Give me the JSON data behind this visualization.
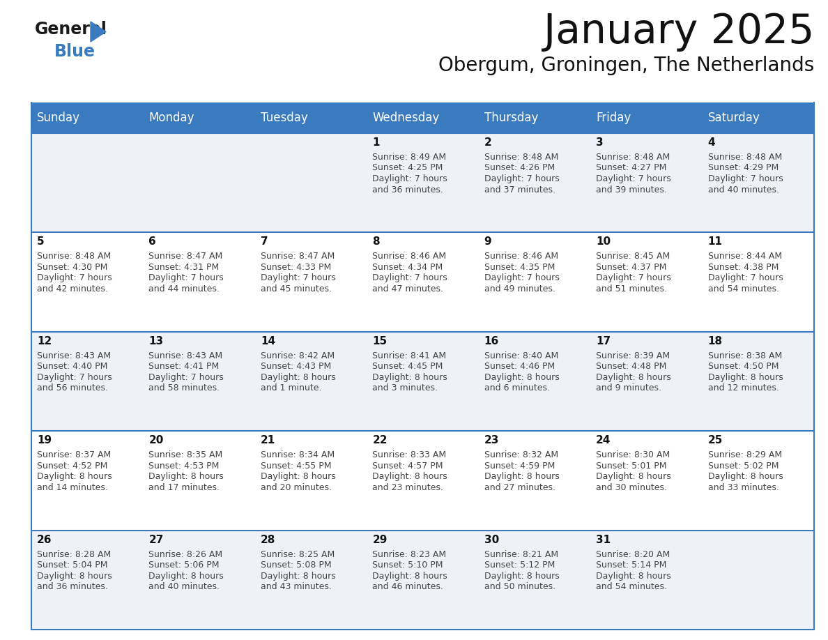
{
  "title": "January 2025",
  "subtitle": "Obergum, Groningen, The Netherlands",
  "days_of_week": [
    "Sunday",
    "Monday",
    "Tuesday",
    "Wednesday",
    "Thursday",
    "Friday",
    "Saturday"
  ],
  "header_bg": "#3a7abf",
  "header_text": "#ffffff",
  "row_bg_light": "#eef2f7",
  "row_bg_white": "#ffffff",
  "border_color": "#3a7abf",
  "cell_text_color": "#444444",
  "calendar_data": [
    {
      "day": 1,
      "col": 3,
      "row": 0,
      "sunrise": "8:49 AM",
      "sunset": "4:25 PM",
      "daylight": "7 hours",
      "daylight2": "and 36 minutes."
    },
    {
      "day": 2,
      "col": 4,
      "row": 0,
      "sunrise": "8:48 AM",
      "sunset": "4:26 PM",
      "daylight": "7 hours",
      "daylight2": "and 37 minutes."
    },
    {
      "day": 3,
      "col": 5,
      "row": 0,
      "sunrise": "8:48 AM",
      "sunset": "4:27 PM",
      "daylight": "7 hours",
      "daylight2": "and 39 minutes."
    },
    {
      "day": 4,
      "col": 6,
      "row": 0,
      "sunrise": "8:48 AM",
      "sunset": "4:29 PM",
      "daylight": "7 hours",
      "daylight2": "and 40 minutes."
    },
    {
      "day": 5,
      "col": 0,
      "row": 1,
      "sunrise": "8:48 AM",
      "sunset": "4:30 PM",
      "daylight": "7 hours",
      "daylight2": "and 42 minutes."
    },
    {
      "day": 6,
      "col": 1,
      "row": 1,
      "sunrise": "8:47 AM",
      "sunset": "4:31 PM",
      "daylight": "7 hours",
      "daylight2": "and 44 minutes."
    },
    {
      "day": 7,
      "col": 2,
      "row": 1,
      "sunrise": "8:47 AM",
      "sunset": "4:33 PM",
      "daylight": "7 hours",
      "daylight2": "and 45 minutes."
    },
    {
      "day": 8,
      "col": 3,
      "row": 1,
      "sunrise": "8:46 AM",
      "sunset": "4:34 PM",
      "daylight": "7 hours",
      "daylight2": "and 47 minutes."
    },
    {
      "day": 9,
      "col": 4,
      "row": 1,
      "sunrise": "8:46 AM",
      "sunset": "4:35 PM",
      "daylight": "7 hours",
      "daylight2": "and 49 minutes."
    },
    {
      "day": 10,
      "col": 5,
      "row": 1,
      "sunrise": "8:45 AM",
      "sunset": "4:37 PM",
      "daylight": "7 hours",
      "daylight2": "and 51 minutes."
    },
    {
      "day": 11,
      "col": 6,
      "row": 1,
      "sunrise": "8:44 AM",
      "sunset": "4:38 PM",
      "daylight": "7 hours",
      "daylight2": "and 54 minutes."
    },
    {
      "day": 12,
      "col": 0,
      "row": 2,
      "sunrise": "8:43 AM",
      "sunset": "4:40 PM",
      "daylight": "7 hours",
      "daylight2": "and 56 minutes."
    },
    {
      "day": 13,
      "col": 1,
      "row": 2,
      "sunrise": "8:43 AM",
      "sunset": "4:41 PM",
      "daylight": "7 hours",
      "daylight2": "and 58 minutes."
    },
    {
      "day": 14,
      "col": 2,
      "row": 2,
      "sunrise": "8:42 AM",
      "sunset": "4:43 PM",
      "daylight": "8 hours",
      "daylight2": "and 1 minute."
    },
    {
      "day": 15,
      "col": 3,
      "row": 2,
      "sunrise": "8:41 AM",
      "sunset": "4:45 PM",
      "daylight": "8 hours",
      "daylight2": "and 3 minutes."
    },
    {
      "day": 16,
      "col": 4,
      "row": 2,
      "sunrise": "8:40 AM",
      "sunset": "4:46 PM",
      "daylight": "8 hours",
      "daylight2": "and 6 minutes."
    },
    {
      "day": 17,
      "col": 5,
      "row": 2,
      "sunrise": "8:39 AM",
      "sunset": "4:48 PM",
      "daylight": "8 hours",
      "daylight2": "and 9 minutes."
    },
    {
      "day": 18,
      "col": 6,
      "row": 2,
      "sunrise": "8:38 AM",
      "sunset": "4:50 PM",
      "daylight": "8 hours",
      "daylight2": "and 12 minutes."
    },
    {
      "day": 19,
      "col": 0,
      "row": 3,
      "sunrise": "8:37 AM",
      "sunset": "4:52 PM",
      "daylight": "8 hours",
      "daylight2": "and 14 minutes."
    },
    {
      "day": 20,
      "col": 1,
      "row": 3,
      "sunrise": "8:35 AM",
      "sunset": "4:53 PM",
      "daylight": "8 hours",
      "daylight2": "and 17 minutes."
    },
    {
      "day": 21,
      "col": 2,
      "row": 3,
      "sunrise": "8:34 AM",
      "sunset": "4:55 PM",
      "daylight": "8 hours",
      "daylight2": "and 20 minutes."
    },
    {
      "day": 22,
      "col": 3,
      "row": 3,
      "sunrise": "8:33 AM",
      "sunset": "4:57 PM",
      "daylight": "8 hours",
      "daylight2": "and 23 minutes."
    },
    {
      "day": 23,
      "col": 4,
      "row": 3,
      "sunrise": "8:32 AM",
      "sunset": "4:59 PM",
      "daylight": "8 hours",
      "daylight2": "and 27 minutes."
    },
    {
      "day": 24,
      "col": 5,
      "row": 3,
      "sunrise": "8:30 AM",
      "sunset": "5:01 PM",
      "daylight": "8 hours",
      "daylight2": "and 30 minutes."
    },
    {
      "day": 25,
      "col": 6,
      "row": 3,
      "sunrise": "8:29 AM",
      "sunset": "5:02 PM",
      "daylight": "8 hours",
      "daylight2": "and 33 minutes."
    },
    {
      "day": 26,
      "col": 0,
      "row": 4,
      "sunrise": "8:28 AM",
      "sunset": "5:04 PM",
      "daylight": "8 hours",
      "daylight2": "and 36 minutes."
    },
    {
      "day": 27,
      "col": 1,
      "row": 4,
      "sunrise": "8:26 AM",
      "sunset": "5:06 PM",
      "daylight": "8 hours",
      "daylight2": "and 40 minutes."
    },
    {
      "day": 28,
      "col": 2,
      "row": 4,
      "sunrise": "8:25 AM",
      "sunset": "5:08 PM",
      "daylight": "8 hours",
      "daylight2": "and 43 minutes."
    },
    {
      "day": 29,
      "col": 3,
      "row": 4,
      "sunrise": "8:23 AM",
      "sunset": "5:10 PM",
      "daylight": "8 hours",
      "daylight2": "and 46 minutes."
    },
    {
      "day": 30,
      "col": 4,
      "row": 4,
      "sunrise": "8:21 AM",
      "sunset": "5:12 PM",
      "daylight": "8 hours",
      "daylight2": "and 50 minutes."
    },
    {
      "day": 31,
      "col": 5,
      "row": 4,
      "sunrise": "8:20 AM",
      "sunset": "5:14 PM",
      "daylight": "8 hours",
      "daylight2": "and 54 minutes."
    }
  ]
}
